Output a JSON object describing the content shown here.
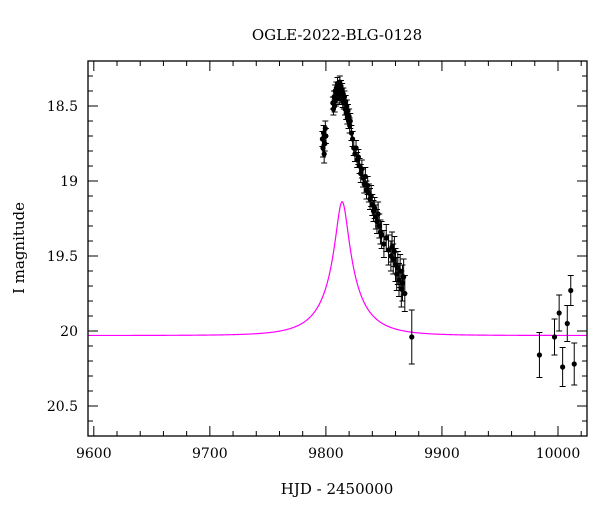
{
  "chart_data": {
    "type": "scatter",
    "title": "OGLE-2022-BLG-0128",
    "xlabel": "HJD - 2450000",
    "ylabel": "I magnitude",
    "xlim": [
      9595,
      10025
    ],
    "ylim": [
      20.7,
      18.2
    ],
    "y_inverted": true,
    "grid": false,
    "legend": "none",
    "colors": {
      "data": "#000000",
      "model": "#ff00ff"
    },
    "x_ticks": [
      9600,
      9700,
      9800,
      9900,
      10000
    ],
    "y_ticks": [
      18.5,
      19,
      19.5,
      20,
      20.5
    ],
    "x_tick_labels": [
      "9600",
      "9700",
      "9800",
      "9900",
      "10000"
    ],
    "y_tick_labels": [
      "18.5",
      "19",
      "19.5",
      "20",
      "20.5"
    ],
    "series": [
      {
        "type": "errorbar-scatter",
        "points": [
          [
            9797.0,
            18.72,
            0.05
          ],
          [
            9797.5,
            18.78,
            0.06
          ],
          [
            9798.0,
            18.68,
            0.05
          ],
          [
            9798.5,
            18.82,
            0.06
          ],
          [
            9799.0,
            18.75,
            0.05
          ],
          [
            9799.5,
            18.65,
            0.05
          ],
          [
            9800.0,
            18.7,
            0.05
          ],
          [
            9806.0,
            18.48,
            0.04
          ],
          [
            9806.5,
            18.52,
            0.04
          ],
          [
            9807.0,
            18.44,
            0.04
          ],
          [
            9807.5,
            18.5,
            0.04
          ],
          [
            9808.0,
            18.4,
            0.04
          ],
          [
            9808.5,
            18.46,
            0.04
          ],
          [
            9809.0,
            18.38,
            0.04
          ],
          [
            9809.5,
            18.44,
            0.04
          ],
          [
            9810.0,
            18.35,
            0.04
          ],
          [
            9810.5,
            18.42,
            0.04
          ],
          [
            9811.0,
            18.38,
            0.04
          ],
          [
            9811.5,
            18.45,
            0.04
          ],
          [
            9812.0,
            18.34,
            0.04
          ],
          [
            9812.5,
            18.4,
            0.04
          ],
          [
            9813.0,
            18.37,
            0.04
          ],
          [
            9813.5,
            18.44,
            0.04
          ],
          [
            9814.0,
            18.39,
            0.04
          ],
          [
            9814.5,
            18.47,
            0.04
          ],
          [
            9815.0,
            18.42,
            0.04
          ],
          [
            9815.5,
            18.48,
            0.04
          ],
          [
            9816.0,
            18.44,
            0.04
          ],
          [
            9816.5,
            18.52,
            0.04
          ],
          [
            9817.0,
            18.47,
            0.04
          ],
          [
            9817.5,
            18.55,
            0.04
          ],
          [
            9818.0,
            18.5,
            0.04
          ],
          [
            9818.5,
            18.58,
            0.04
          ],
          [
            9819.0,
            18.53,
            0.04
          ],
          [
            9819.5,
            18.6,
            0.05
          ],
          [
            9820.0,
            18.57,
            0.05
          ],
          [
            9820.5,
            18.63,
            0.05
          ],
          [
            9821.0,
            18.6,
            0.05
          ],
          [
            9822.0,
            18.68,
            0.05
          ],
          [
            9823.0,
            18.72,
            0.05
          ],
          [
            9824.0,
            18.78,
            0.05
          ],
          [
            9825.0,
            18.82,
            0.05
          ],
          [
            9826.0,
            18.78,
            0.05
          ],
          [
            9827.0,
            18.86,
            0.05
          ],
          [
            9828.0,
            18.84,
            0.05
          ],
          [
            9829.0,
            18.9,
            0.05
          ],
          [
            9830.0,
            18.95,
            0.06
          ],
          [
            9831.0,
            18.92,
            0.06
          ],
          [
            9832.0,
            18.98,
            0.06
          ],
          [
            9833.0,
            19.02,
            0.06
          ],
          [
            9834.0,
            18.97,
            0.06
          ],
          [
            9835.0,
            19.06,
            0.06
          ],
          [
            9836.0,
            19.03,
            0.06
          ],
          [
            9837.0,
            19.08,
            0.06
          ],
          [
            9838.0,
            19.12,
            0.07
          ],
          [
            9839.0,
            19.1,
            0.07
          ],
          [
            9840.0,
            19.16,
            0.07
          ],
          [
            9841.0,
            19.2,
            0.07
          ],
          [
            9842.0,
            19.18,
            0.07
          ],
          [
            9843.0,
            19.24,
            0.08
          ],
          [
            9844.0,
            19.27,
            0.08
          ],
          [
            9845.0,
            19.22,
            0.08
          ],
          [
            9846.0,
            19.3,
            0.08
          ],
          [
            9847.0,
            19.34,
            0.08
          ],
          [
            9848.0,
            19.36,
            0.09
          ],
          [
            9850.0,
            19.42,
            0.09
          ],
          [
            9852.0,
            19.38,
            0.09
          ],
          [
            9854.0,
            19.46,
            0.1
          ],
          [
            9856.0,
            19.5,
            0.1
          ],
          [
            9857.0,
            19.44,
            0.1
          ],
          [
            9858.0,
            19.52,
            0.1
          ],
          [
            9859.0,
            19.47,
            0.1
          ],
          [
            9860.0,
            19.56,
            0.11
          ],
          [
            9861.0,
            19.62,
            0.11
          ],
          [
            9862.0,
            19.58,
            0.11
          ],
          [
            9863.0,
            19.66,
            0.11
          ],
          [
            9864.0,
            19.6,
            0.11
          ],
          [
            9865.0,
            19.72,
            0.12
          ],
          [
            9866.0,
            19.68,
            0.12
          ],
          [
            9867.0,
            19.64,
            0.12
          ],
          [
            9868.0,
            19.75,
            0.12
          ],
          [
            9874.0,
            20.04,
            0.18
          ],
          [
            9984.0,
            20.16,
            0.15
          ],
          [
            9997.0,
            20.04,
            0.12
          ],
          [
            10001.0,
            19.88,
            0.12
          ],
          [
            10004.0,
            20.24,
            0.13
          ],
          [
            10008.0,
            19.95,
            0.12
          ],
          [
            10011.0,
            19.73,
            0.1
          ],
          [
            10014.0,
            20.22,
            0.14
          ]
        ]
      },
      {
        "type": "model-curve",
        "model": "pspl",
        "params": {
          "t0": 9814,
          "u0": 0.16,
          "tE": 34,
          "I_base": 20.03,
          "fs": 0.24
        }
      }
    ]
  }
}
